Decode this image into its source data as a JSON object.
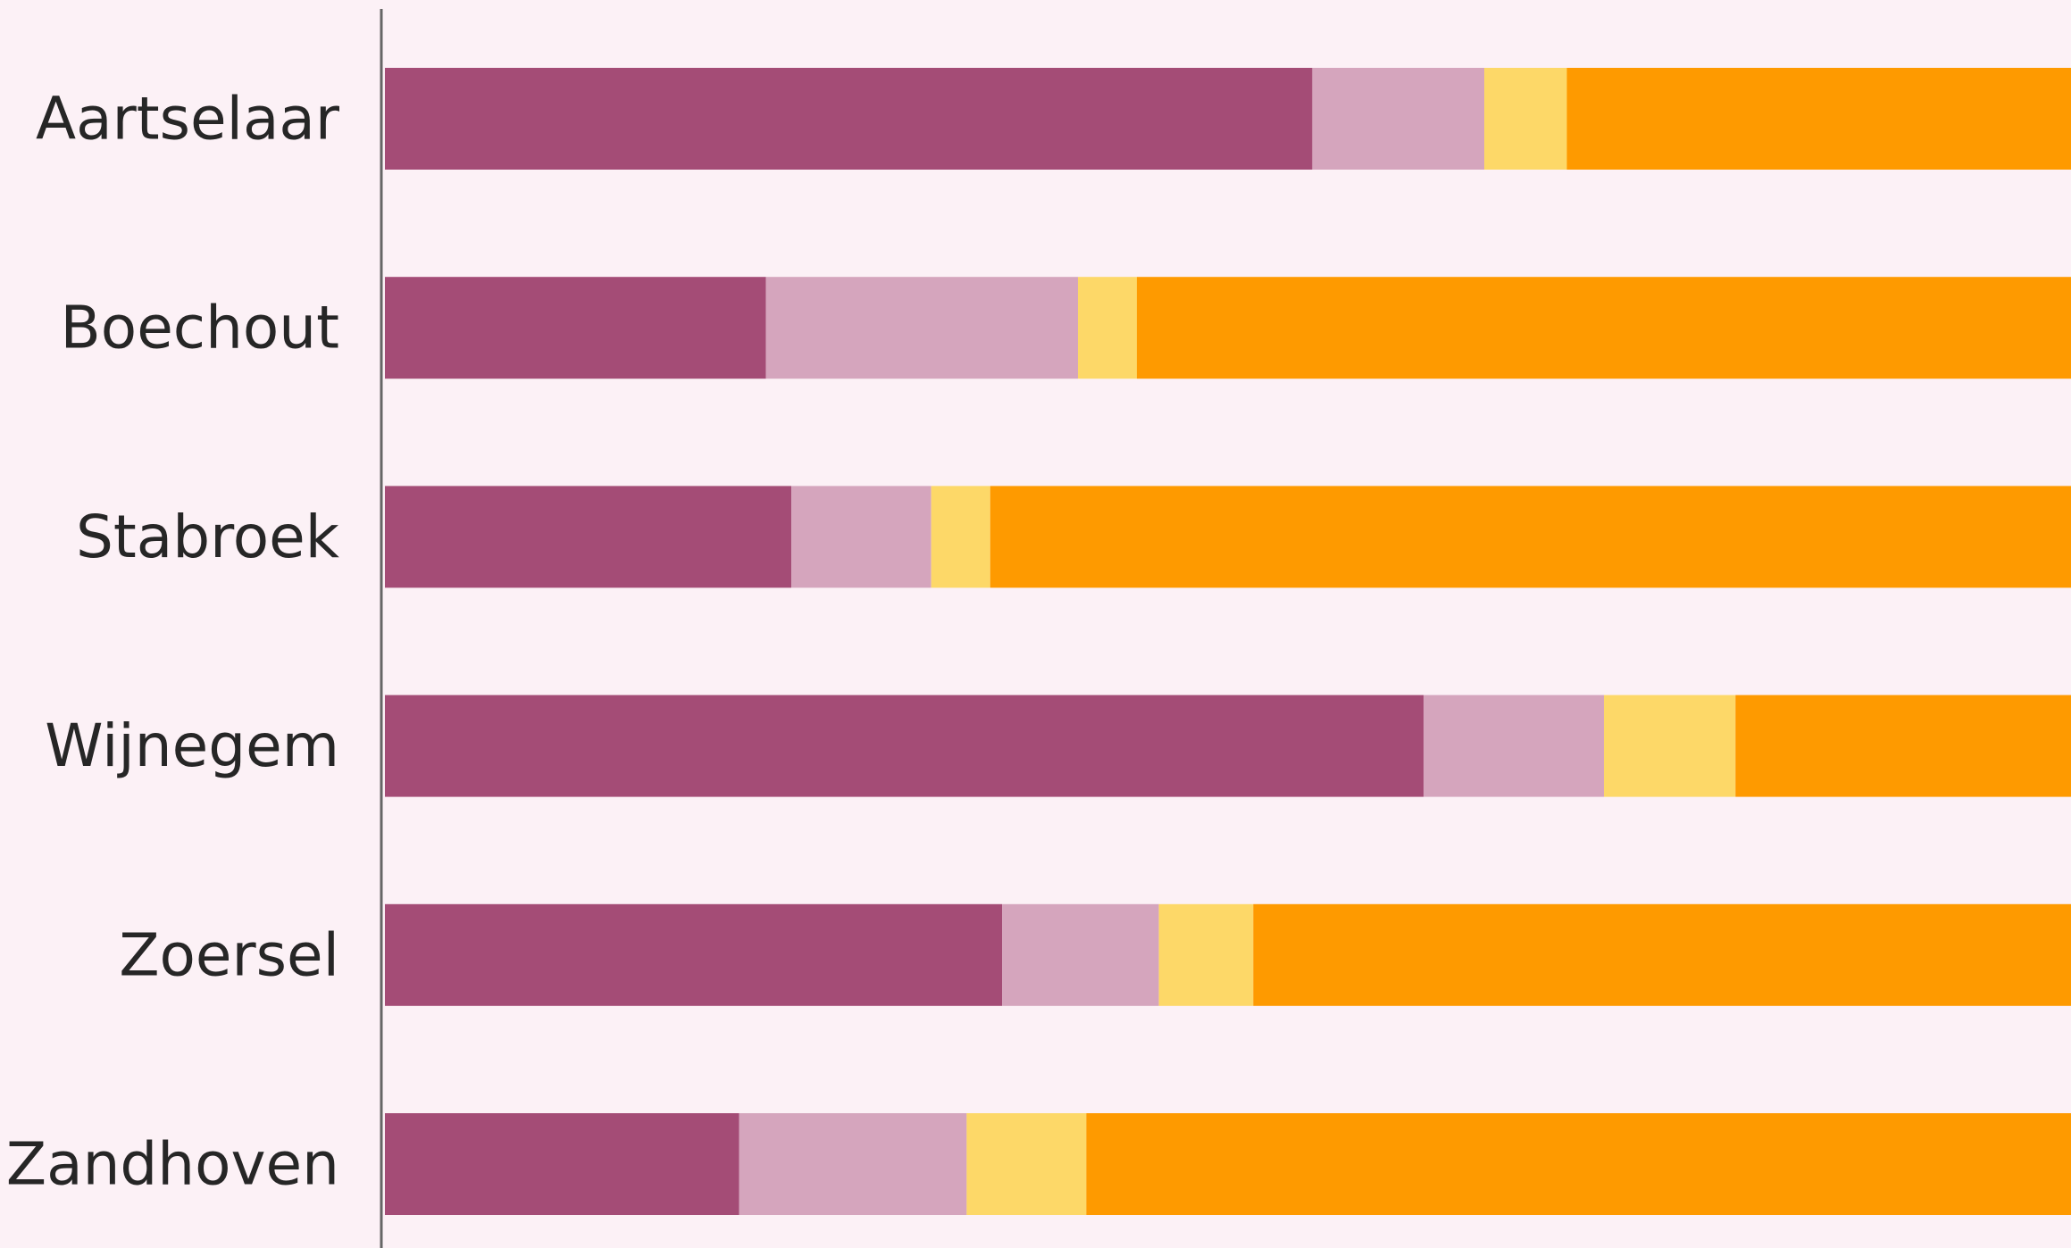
{
  "chart_data": {
    "type": "bar",
    "orientation": "horizontal",
    "stacked": true,
    "title": "",
    "xlabel": "",
    "ylabel": "",
    "legend": "none",
    "grid": false,
    "categories": [
      "Aartselaar",
      "Boechout",
      "Stabroek",
      "Wijnegem",
      "Zoersel",
      "Zandhoven"
    ],
    "series": [
      {
        "color": "#a44c76",
        "values": [
          55,
          22.6,
          24.1,
          61.6,
          36.6,
          21
        ]
      },
      {
        "color": "#d5a5bd",
        "values": [
          10.2,
          18.5,
          8.3,
          10.7,
          9.3,
          13.5
        ]
      },
      {
        "color": "#fdd868",
        "values": [
          4.9,
          3.5,
          3.5,
          7.8,
          5.6,
          7.1
        ]
      },
      {
        "color": "#fe9a00",
        "values": [
          29.9,
          55.4,
          64.1,
          19.9,
          48.5,
          58.4
        ]
      }
    ],
    "xlim": [
      0,
      100
    ]
  }
}
